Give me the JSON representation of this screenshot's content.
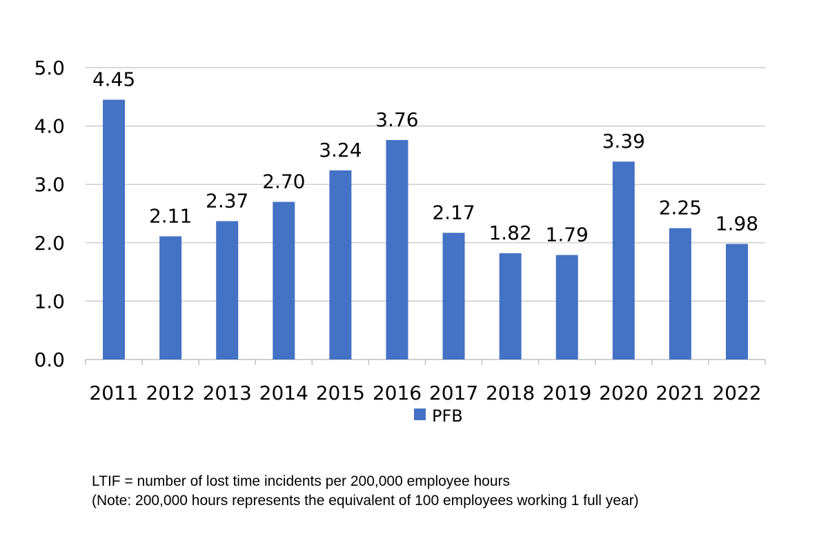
{
  "chart_data": {
    "type": "bar",
    "categories": [
      "2011",
      "2012",
      "2013",
      "2014",
      "2015",
      "2016",
      "2017",
      "2018",
      "2019",
      "2020",
      "2021",
      "2022"
    ],
    "series": [
      {
        "name": "PFB",
        "values": [
          4.45,
          2.11,
          2.37,
          2.7,
          3.24,
          3.76,
          2.17,
          1.82,
          1.79,
          3.39,
          2.25,
          1.98
        ],
        "labels": [
          "4.45",
          "2.11",
          "2.37",
          "2.70",
          "3.24",
          "3.76",
          "2.17",
          "1.82",
          "1.79",
          "3.39",
          "2.25",
          "1.98"
        ],
        "color": "#4472C4"
      }
    ],
    "ylim": [
      0,
      5
    ],
    "yticks": [
      "0.0",
      "1.0",
      "2.0",
      "3.0",
      "4.0",
      "5.0"
    ],
    "ytick_values": [
      0,
      1,
      2,
      3,
      4,
      5
    ],
    "grid": true,
    "grid_color": "#BFBFBF",
    "legend_position": "bottom"
  },
  "footnotes": {
    "line1": "LTIF = number of lost time incidents per 200,000 employee hours",
    "line2": "(Note: 200,000 hours represents the equivalent of 100 employees working 1 full year)"
  }
}
